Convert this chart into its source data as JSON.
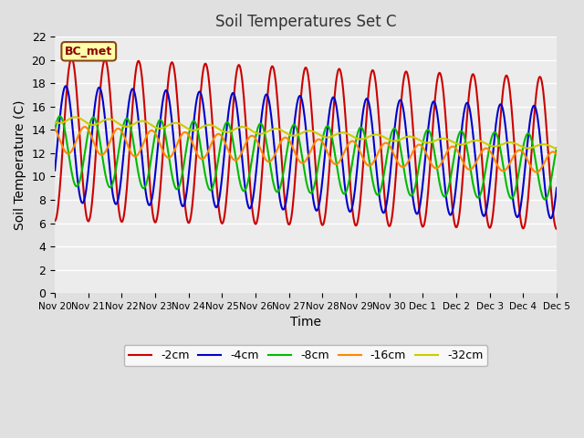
{
  "title": "Soil Temperatures Set C",
  "xlabel": "Time",
  "ylabel": "Soil Temperature (C)",
  "annotation": "BC_met",
  "legend_labels": [
    "-2cm",
    "-4cm",
    "-8cm",
    "-16cm",
    "-32cm"
  ],
  "colors": [
    "#cc0000",
    "#0000cc",
    "#00bb00",
    "#ff8800",
    "#cccc00"
  ],
  "ylim": [
    0,
    22
  ],
  "n_days": 15,
  "points_per_day": 48,
  "x_labels": [
    "Nov 20",
    "Nov 21",
    "Nov 22",
    "Nov 23",
    "Nov 24",
    "Nov 25",
    "Nov 26",
    "Nov 27",
    "Nov 28",
    "Nov 29",
    "Nov 30",
    "Dec 1",
    "Dec 2",
    "Dec 3",
    "Dec 4",
    "Dec 5"
  ]
}
